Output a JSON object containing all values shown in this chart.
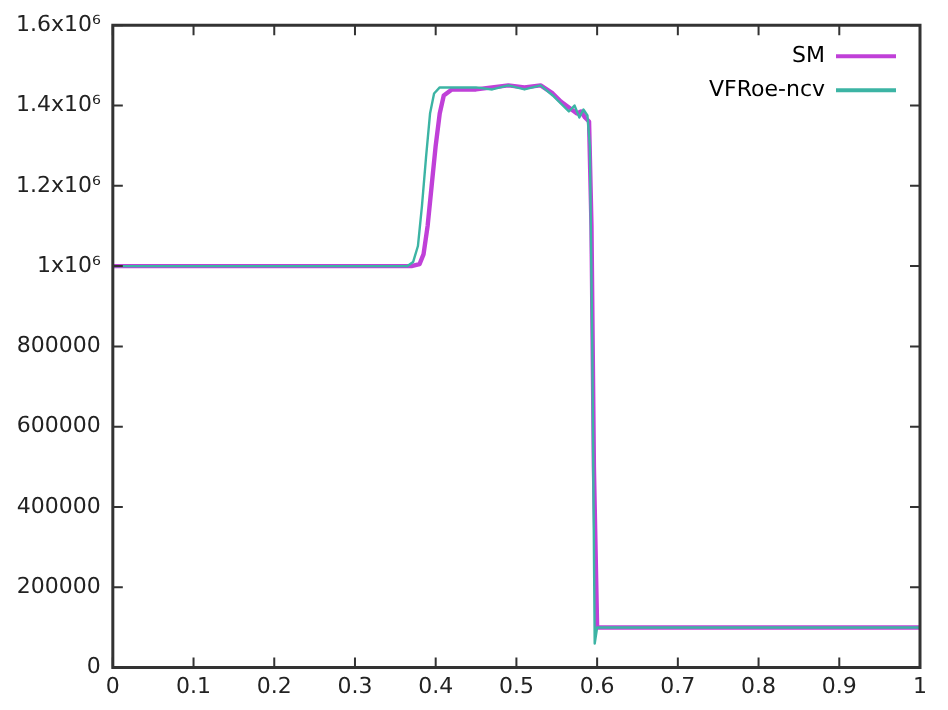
{
  "chart_data": {
    "type": "line",
    "xlim": [
      0,
      1
    ],
    "xticks": [
      0,
      0.1,
      0.2,
      0.3,
      0.4,
      0.5,
      0.6,
      0.7,
      0.8,
      0.9,
      1
    ],
    "ylim": [
      0,
      1600000
    ],
    "yticks": [
      0,
      200000,
      400000,
      600000,
      800000,
      {
        "value": 1000000,
        "label": "1x10⁶"
      },
      {
        "value": 1200000,
        "label": "1.2x10⁶"
      },
      {
        "value": 1400000,
        "label": "1.4x10⁶"
      },
      {
        "value": 1600000,
        "label": "1.6x10⁶"
      }
    ],
    "legend": "top right",
    "grid": false,
    "marker": "none",
    "line_style": "solid",
    "series": [
      {
        "name": "SM",
        "color": "#c040d8",
        "x": [
          0,
          0.37,
          0.38,
          0.385,
          0.39,
          0.395,
          0.4,
          0.405,
          0.41,
          0.42,
          0.45,
          0.47,
          0.49,
          0.51,
          0.53,
          0.545,
          0.555,
          0.565,
          0.575,
          0.58,
          0.585,
          0.59,
          0.593,
          0.596,
          0.6,
          0.7,
          0.8,
          0.9,
          1
        ],
        "values": [
          1000000,
          1000000,
          1005000,
          1030000,
          1100000,
          1200000,
          1300000,
          1380000,
          1425000,
          1440000,
          1440000,
          1445000,
          1450000,
          1445000,
          1450000,
          1430000,
          1410000,
          1395000,
          1380000,
          1385000,
          1370000,
          1360000,
          1100000,
          500000,
          100000,
          100000,
          100000,
          100000,
          100000
        ]
      },
      {
        "name": "VFRoe-ncv",
        "color": "#3cb4a4",
        "x": [
          0,
          0.365,
          0.372,
          0.378,
          0.383,
          0.388,
          0.393,
          0.398,
          0.405,
          0.42,
          0.45,
          0.47,
          0.49,
          0.51,
          0.53,
          0.545,
          0.555,
          0.565,
          0.572,
          0.578,
          0.583,
          0.588,
          0.591,
          0.594,
          0.597,
          0.6,
          0.7,
          0.8,
          0.9,
          1
        ],
        "values": [
          1000000,
          1000000,
          1010000,
          1050000,
          1150000,
          1270000,
          1380000,
          1430000,
          1445000,
          1445000,
          1445000,
          1440000,
          1450000,
          1440000,
          1450000,
          1425000,
          1405000,
          1385000,
          1400000,
          1370000,
          1390000,
          1375000,
          1300000,
          800000,
          60000,
          100000,
          100000,
          100000,
          100000,
          100000
        ]
      }
    ]
  }
}
